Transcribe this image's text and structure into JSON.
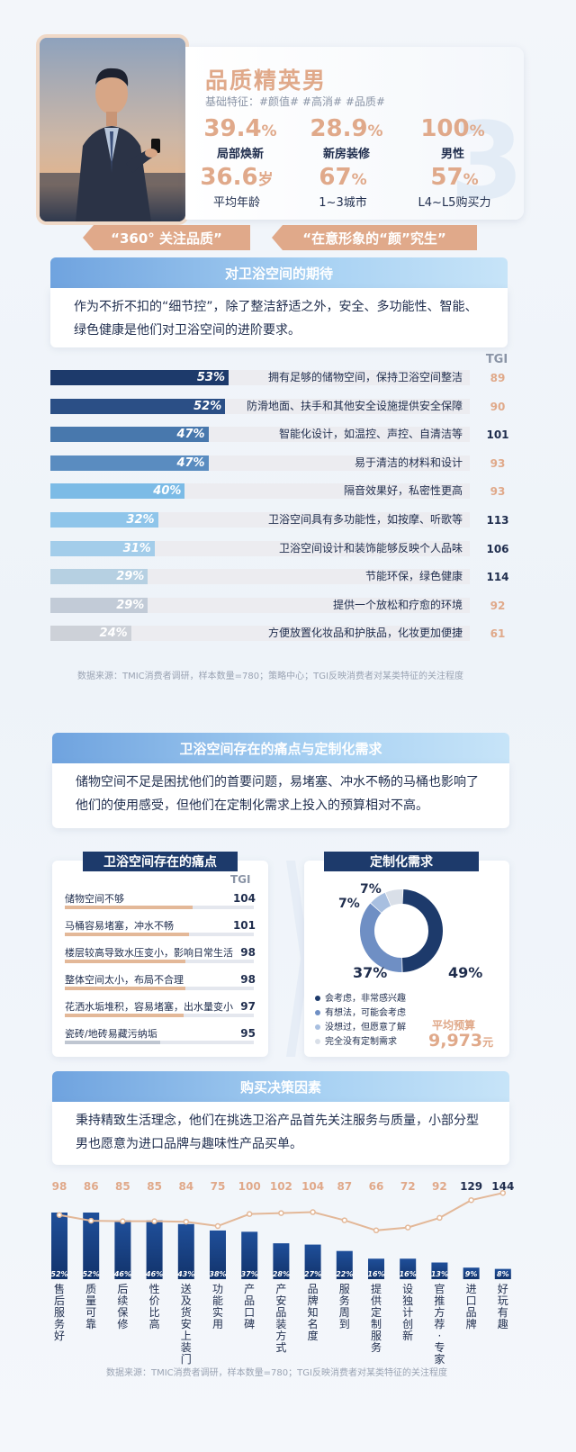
{
  "persona": {
    "title": "品质精英男",
    "tags": "基础特征：#颜值#  #高消#  #品质#",
    "big_digit": "3",
    "stats": [
      {
        "value": "39.4",
        "unit": "%",
        "label": "局部焕新"
      },
      {
        "value": "28.9",
        "unit": "%",
        "label": "新房装修"
      },
      {
        "value": "100",
        "unit": "%",
        "label": "男性"
      },
      {
        "value": "36.6",
        "unit": "岁",
        "label": "平均年龄"
      },
      {
        "value": "67",
        "unit": "%",
        "label": "1~3城市"
      },
      {
        "value": "57",
        "unit": "%",
        "label": "L4~L5购买力"
      }
    ],
    "ribbons": [
      "“360° 关注品质”",
      "“在意形象的“颜”究生”"
    ]
  },
  "expectations": {
    "header": "对卫浴空间的期待",
    "text": "作为不折不扣的“细节控”，除了整洁舒适之外，安全、多功能性、智能、绿色健康是他们对卫浴空间的进阶要求。",
    "tgi_header": "TGI",
    "source": "数据来源：TMIC消费者调研，样本数量=780；策略中心；TGI反映消费者对某类特征的关注程度"
  },
  "pain": {
    "header": "卫浴空间存在的痛点与定制化需求",
    "text": "储物空间不足是困扰他们的首要问题，易堵塞、冲水不畅的马桶也影响了他们的使用感受，但他们在定制化需求上投入的预算相对不高。",
    "pain_title": "卫浴空间存在的痛点",
    "tgi_header": "TGI",
    "custom_title": "定制化需求",
    "budget_label": "平均预算",
    "budget_value": "9,973",
    "budget_unit": "元"
  },
  "purchase": {
    "header": "购买决策因素",
    "text": "秉持精致生活理念，他们在挑选卫浴产品首先关注服务与质量，小部分型男也愿意为进口品牌与趣味性产品买单。",
    "source": "数据来源：TMIC消费者调研，样本数量=780；TGI反映消费者对某类特征的关注程度"
  },
  "colors": {
    "accent": "#e0a98a",
    "navy": "#1d3a6b",
    "tgi_high": "#1f2d4d",
    "tgi_low": "#e0a98a"
  },
  "chart_data": [
    {
      "type": "bar",
      "orientation": "horizontal",
      "categories": [
        "拥有足够的储物空间，保持卫浴空间整洁",
        "防滑地面、扶手和其他安全设施提供安全保障",
        "智能化设计，如温控、声控、自清洁等",
        "易于清洁的材料和设计",
        "隔音效果好，私密性更高",
        "卫浴空间具有多功能性，如按摩、听歌等",
        "卫浴空间设计和装饰能够反映个人品味",
        "节能环保，绿色健康",
        "提供一个放松和疗愈的环境",
        "方便放置化妆品和护肤品，化妆更加便捷"
      ],
      "values": [
        53,
        52,
        47,
        47,
        40,
        32,
        31,
        29,
        29,
        24
      ],
      "value_labels": [
        "53%",
        "52%",
        "47%",
        "47%",
        "40%",
        "32%",
        "31%",
        "29%",
        "29%",
        "24%"
      ],
      "tgi": [
        "89",
        "90",
        "101",
        "93",
        "93",
        "113",
        "106",
        "114",
        "92",
        "61"
      ],
      "xlim": [
        0,
        100
      ]
    },
    {
      "type": "bar",
      "orientation": "horizontal",
      "categories": [
        "储物空间不够",
        "马桶容易堵塞，冲水不畅",
        "楼层较高导致水压变小，影响日常生活",
        "整体空间太小，布局不合理",
        "花洒水垢堆积，容易堵塞，出水量变小",
        "瓷砖/地砖易藏污纳垢"
      ],
      "values": [
        104,
        101,
        98,
        98,
        97,
        95
      ],
      "tgi": [
        "104",
        "101",
        "98",
        "98",
        "97",
        "95"
      ]
    },
    {
      "type": "pie",
      "donut": true,
      "labels": [
        "会考虑，非常感兴趣",
        "有想法，可能会考虑",
        "没想过，但愿意了解",
        "完全没有定制需求"
      ],
      "values": [
        49,
        37,
        7,
        7
      ],
      "value_labels": [
        "49%",
        "37%",
        "7%",
        "7%"
      ],
      "colors": [
        "#1d3a6b",
        "#6f8fc4",
        "#a8bfe0",
        "#d9dfe8"
      ]
    },
    {
      "type": "bar",
      "orientation": "vertical",
      "categories": [
        "售后服务好",
        "质量可靠",
        "后续保修",
        "性价比高",
        "送及货安上装门",
        "功能实用",
        "产品口碑",
        "产安品装方式",
        "品牌知名度",
        "服务周到",
        "提供定制服务",
        "设独计创新",
        "官推方荐·专家",
        "进口品牌",
        "好玩有趣"
      ],
      "values": [
        52,
        52,
        46,
        46,
        43,
        38,
        37,
        28,
        27,
        22,
        16,
        16,
        13,
        9,
        8
      ],
      "value_labels": [
        "52%",
        "52%",
        "46%",
        "46%",
        "43%",
        "38%",
        "37%",
        "28%",
        "27%",
        "22%",
        "16%",
        "16%",
        "13%",
        "9%",
        "8%"
      ],
      "tgi": [
        "98",
        "86",
        "85",
        "85",
        "84",
        "75",
        "100",
        "102",
        "104",
        "87",
        "66",
        "72",
        "92",
        "129",
        "144"
      ],
      "ylim": [
        0,
        60
      ]
    }
  ]
}
